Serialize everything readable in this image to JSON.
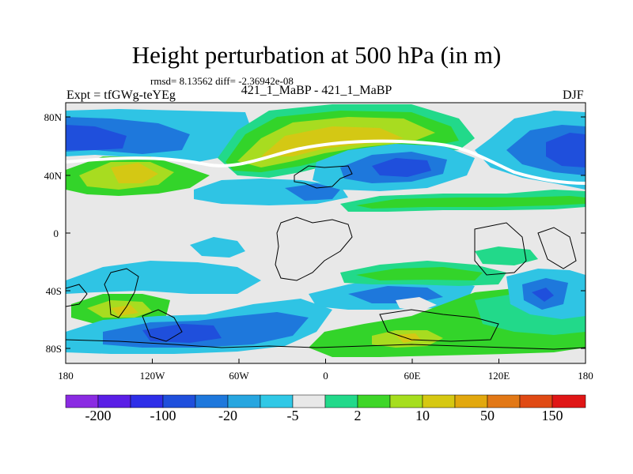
{
  "title": "Height perturbation at 500 hPa (in m)",
  "stats": "rmsd= 8.13562 diff= -2.36942e-08",
  "experiment_label": "Expt = tfGWg-teYEg",
  "comparison_label": "421_1_MaBP - 421_1_MaBP",
  "season_label": "DJF",
  "axes": {
    "lat_ticks": [
      "80N",
      "40N",
      "0",
      "40S",
      "80S"
    ],
    "lon_ticks": [
      "180",
      "120W",
      "60W",
      "0",
      "60E",
      "120E",
      "180"
    ]
  },
  "colorbar": {
    "colors": [
      "#8a2be2",
      "#5a1ee6",
      "#2e2ee8",
      "#1f4fdc",
      "#1e78dc",
      "#27a6e0",
      "#30c8e6",
      "#e8e8e8",
      "#22d98a",
      "#3ed628",
      "#a6de1e",
      "#d6c812",
      "#e2a80e",
      "#e27816",
      "#e04a14",
      "#e01616"
    ],
    "labels": [
      "-200",
      "-100",
      "-20",
      "-5",
      "2",
      "10",
      "50",
      "150"
    ]
  },
  "palette": {
    "neutral": "#e8e8e8",
    "green": "#33d42a",
    "yellowgreen": "#a8dc20",
    "yellow": "#d4c814",
    "cyan": "#2fc4e4",
    "blue": "#1e78dc",
    "deepblue": "#1f4fdc",
    "teal": "#22d98a"
  }
}
